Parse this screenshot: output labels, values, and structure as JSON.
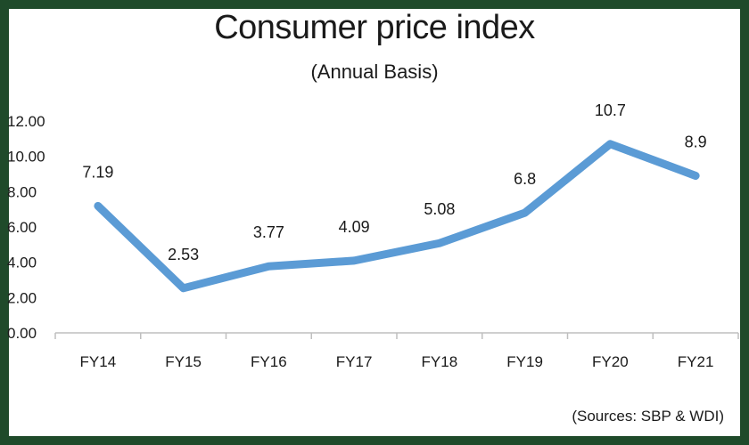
{
  "colors": {
    "frame": "#1f4a2a",
    "line": "#5b9bd5",
    "axis": "#bfbfbf"
  },
  "source_text": "(Sources: SBP & WDI)",
  "chart_data": {
    "type": "line",
    "title": "Consumer price index",
    "subtitle": "(Annual Basis)",
    "xlabel": "",
    "ylabel": "",
    "categories": [
      "FY14",
      "FY15",
      "FY16",
      "FY17",
      "FY18",
      "FY19",
      "FY20",
      "FY21"
    ],
    "series": [
      {
        "name": "CPI",
        "values": [
          7.19,
          2.53,
          3.77,
          4.09,
          5.08,
          6.8,
          10.7,
          8.9
        ]
      }
    ],
    "data_labels": [
      "7.19",
      "2.53",
      "3.77",
      "4.09",
      "5.08",
      "6.8",
      "10.7",
      "8.9"
    ],
    "ylim": [
      0,
      12
    ],
    "yticks": [
      "0.00",
      "2.00",
      "4.00",
      "6.00",
      "8.00",
      "10.00",
      "12.00"
    ],
    "grid": false,
    "legend": "none"
  }
}
